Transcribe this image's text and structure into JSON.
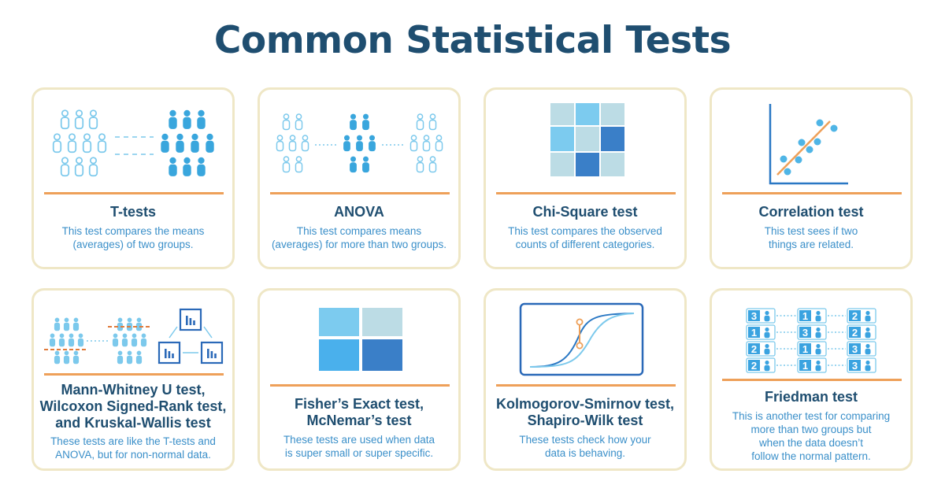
{
  "page": {
    "title": "Common Statistical Tests"
  },
  "colors": {
    "title": "#1f4e70",
    "description": "#3a8fc9",
    "accent_rule": "#eea059",
    "card_border": "#efe7c6",
    "person_light": "#7cc9ec",
    "person_mid": "#39a6dd",
    "axis_blue": "#2a78c4",
    "box_blue": "#2a69b8"
  },
  "cards": [
    {
      "title": "T-tests",
      "desc": [
        "This test compares the means",
        "(averages) of two groups."
      ],
      "icon": "two-groups-people-icon"
    },
    {
      "title": "ANOVA",
      "desc": [
        "This test compares means",
        "(averages) for more than two groups."
      ],
      "icon": "three-groups-people-icon"
    },
    {
      "title": "Chi-Square test",
      "desc": [
        "This test compares the observed",
        "counts of different categories."
      ],
      "icon": "contingency-grid-icon"
    },
    {
      "title": "Correlation test",
      "desc": [
        "This test sees if two",
        "things are related."
      ],
      "icon": "scatter-trend-icon"
    },
    {
      "title": "Mann-Whitney U test,\nWilcoxon Signed-Rank test,\nand Kruskal-Wallis test",
      "desc": [
        "These tests are like the T-tests and",
        "ANOVA, but for non-normal data."
      ],
      "icon": "nonparametric-groups-icon"
    },
    {
      "title": "Fisher’s Exact test,\nMcNemar’s test",
      "desc": [
        "These tests are used when data",
        "is super small or super specific."
      ],
      "icon": "two-by-two-table-icon"
    },
    {
      "title": "Kolmogorov-Smirnov test,\nShapiro-Wilk test",
      "desc": [
        "These tests check how your",
        "data is behaving."
      ],
      "icon": "cumulative-curves-icon"
    },
    {
      "title": "Friedman test",
      "desc": [
        "This is another test for comparing",
        "more than two groups but",
        "when the data doesn’t",
        "follow the normal pattern."
      ],
      "icon": "ranked-rows-icon"
    }
  ],
  "friedman_ranks": [
    [
      "3",
      "1",
      "2"
    ],
    [
      "1",
      "3",
      "2"
    ],
    [
      "2",
      "1",
      "3"
    ],
    [
      "2",
      "1",
      "3"
    ]
  ]
}
